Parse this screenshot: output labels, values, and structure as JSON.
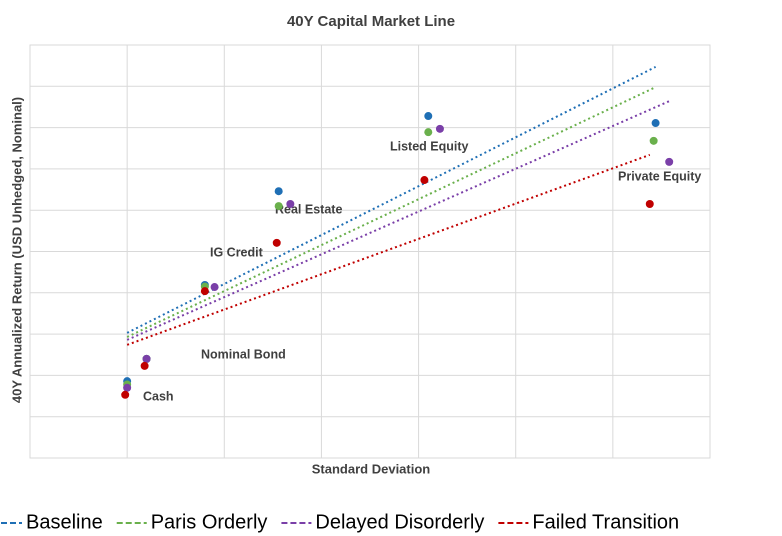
{
  "chart_data": {
    "type": "scatter",
    "title": "40Y Capital Market Line",
    "x_label": "Standard Deviation",
    "y_label": "40Y Annualized Return (USD Unhedged, Nominal)",
    "assets": [
      "Cash",
      "Nominal Bond",
      "IG Credit",
      "Real Estate",
      "Listed Equity",
      "Private Equity"
    ],
    "xlim": [
      -5,
      30
    ],
    "xticks": [
      0,
      5,
      10,
      15,
      20,
      25
    ],
    "ylim": [
      0,
      10
    ],
    "yticks": [
      1,
      2,
      3,
      4,
      5,
      6,
      7,
      8,
      9
    ],
    "grid": true,
    "legend": "bottom",
    "series": [
      {
        "name": "Baseline",
        "color": "#1f6fb5",
        "x": [
          0,
          1.0,
          4.0,
          7.8,
          15.5,
          27.2
        ],
        "values": [
          1.86,
          2.4,
          4.19,
          6.46,
          8.28,
          8.11
        ],
        "line_x": [
          0,
          27.2
        ],
        "line_y": [
          3.03,
          9.47
        ]
      },
      {
        "name": "Paris Orderly",
        "color": "#6ab04c",
        "x": [
          0,
          1.0,
          4.0,
          7.8,
          15.5,
          27.1
        ],
        "values": [
          1.78,
          2.4,
          4.15,
          6.1,
          7.89,
          7.68
        ],
        "line_x": [
          0,
          27.2
        ],
        "line_y": [
          2.93,
          8.98
        ]
      },
      {
        "name": "Delayed Disorderly",
        "color": "#7a3fa8",
        "x": [
          0,
          1.0,
          4.5,
          8.4,
          16.1,
          27.9
        ],
        "values": [
          1.7,
          2.4,
          4.14,
          6.15,
          7.97,
          7.17
        ],
        "line_x": [
          0,
          27.9
        ],
        "line_y": [
          2.86,
          8.64
        ]
      },
      {
        "name": "Failed Transition",
        "color": "#c00000",
        "x": [
          -0.1,
          0.9,
          4.0,
          7.7,
          15.3,
          26.9
        ],
        "values": [
          1.53,
          2.23,
          4.04,
          5.21,
          6.73,
          6.15
        ],
        "line_x": [
          0,
          26.9
        ],
        "line_y": [
          2.74,
          7.34
        ]
      }
    ]
  }
}
